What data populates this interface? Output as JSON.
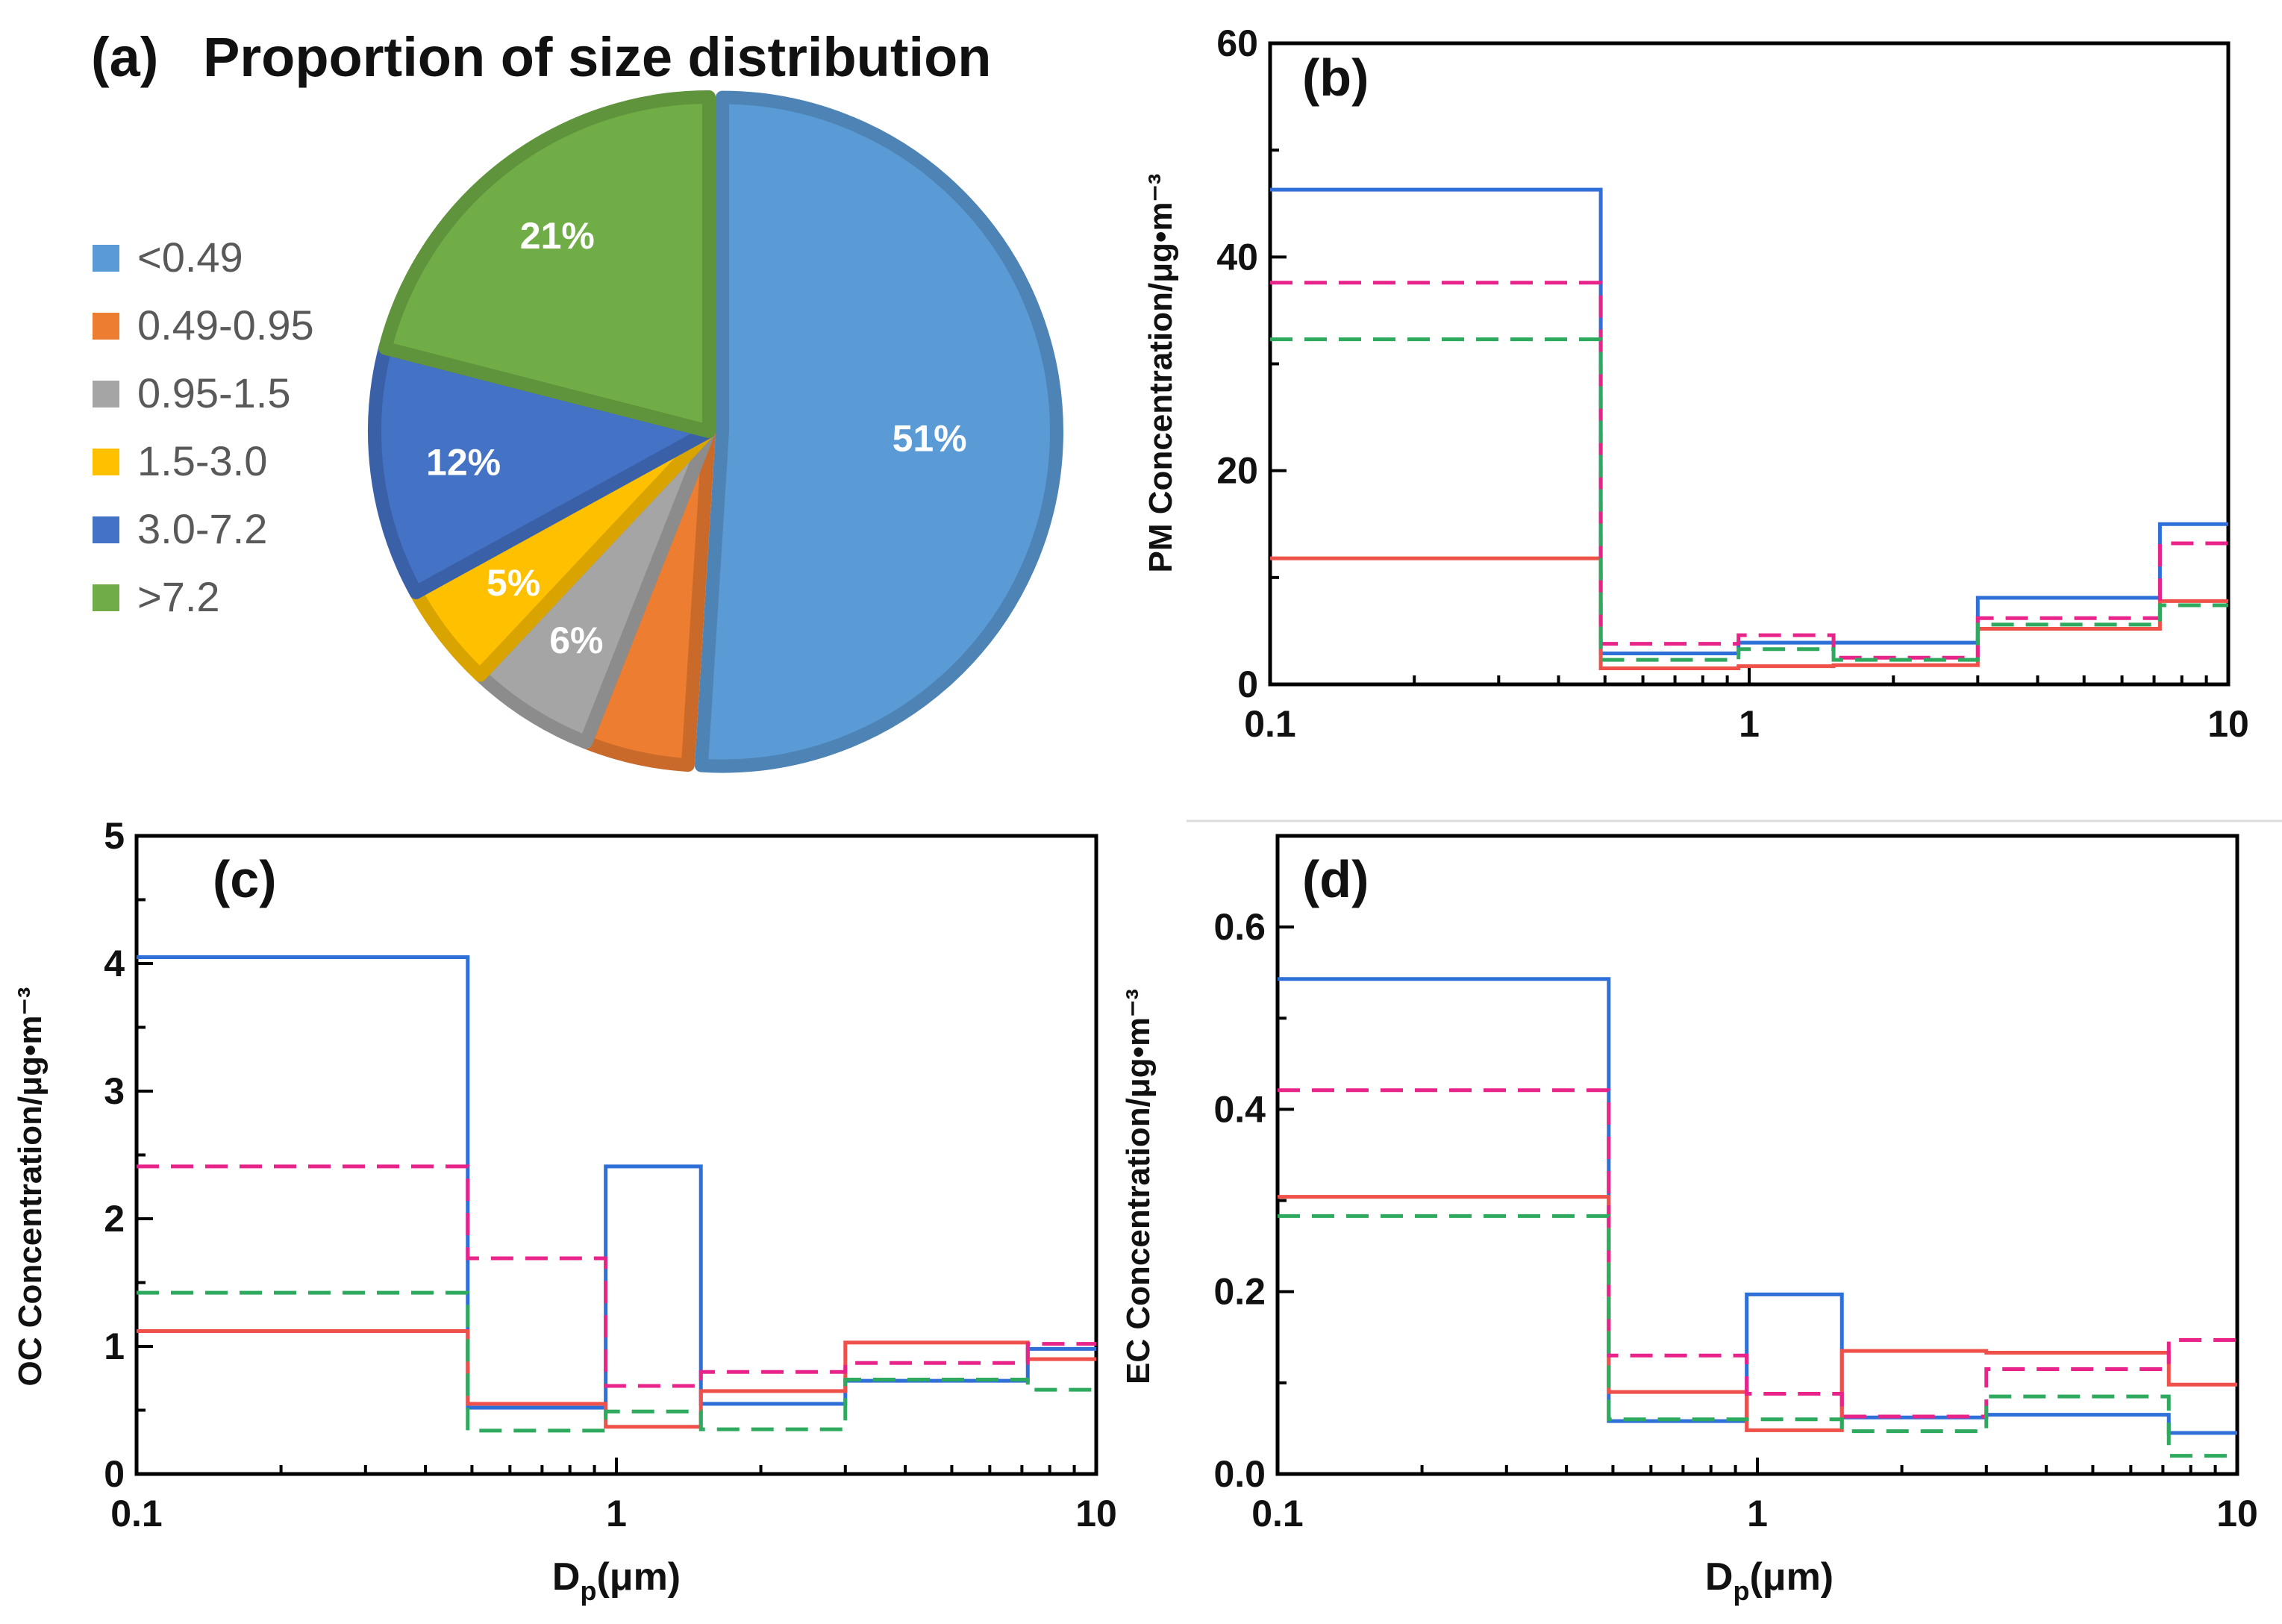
{
  "chart_data": [
    {
      "panel": "a",
      "type": "pie",
      "panel_label": "(a)",
      "title": "Proportion of size distribution",
      "categories": [
        "<0.49",
        "0.49-0.95",
        "0.95-1.5",
        "1.5-3.0",
        "3.0-7.2",
        ">7.2"
      ],
      "values": [
        51,
        5,
        6,
        5,
        12,
        21
      ],
      "data_labels": [
        "51%",
        "",
        "6%",
        "5%",
        "12%",
        "21%"
      ],
      "colors": [
        "#5B9BD5",
        "#ED7D31",
        "#A5A5A5",
        "#FFC000",
        "#4472C4",
        "#70AD47"
      ],
      "legend_position": "left"
    },
    {
      "panel": "b",
      "type": "line",
      "panel_label": "(b)",
      "xlabel": "",
      "ylabel": "PM Concentration/μg•m⁻³",
      "xscale": "log",
      "xlim": [
        0.1,
        10
      ],
      "ylim": [
        0,
        60
      ],
      "yticks": [
        "0",
        "20",
        "40",
        "60"
      ],
      "xticks": [
        "0.1",
        "1",
        "10"
      ],
      "bin_edges": [
        0.1,
        0.49,
        0.95,
        1.5,
        3.0,
        7.2,
        10
      ],
      "series": [
        {
          "name": "blue",
          "color": "#2F6FD8",
          "dash": "solid",
          "values": [
            46.3,
            2.9,
            3.9,
            3.9,
            8.1,
            15.0
          ]
        },
        {
          "name": "red",
          "color": "#F0504A",
          "dash": "solid",
          "values": [
            11.8,
            1.5,
            1.7,
            1.8,
            5.2,
            7.8
          ]
        },
        {
          "name": "magenta",
          "color": "#E8248A",
          "dash": "dashed",
          "values": [
            37.6,
            3.8,
            4.6,
            2.5,
            6.2,
            13.2
          ]
        },
        {
          "name": "green",
          "color": "#2EAA5E",
          "dash": "dashed",
          "values": [
            32.3,
            2.3,
            3.3,
            2.3,
            5.6,
            7.4
          ]
        }
      ]
    },
    {
      "panel": "c",
      "type": "line",
      "panel_label": "(c)",
      "xlabel": "D",
      "xlabel_sub": "p",
      "xlabel_suffix": "(μm)",
      "ylabel": "OC Concentration/μg•m⁻³",
      "xscale": "log",
      "xlim": [
        0.1,
        10
      ],
      "ylim": [
        0,
        5
      ],
      "yticks": [
        "0",
        "1",
        "2",
        "3",
        "4",
        "5"
      ],
      "xticks": [
        "0.1",
        "1",
        "10"
      ],
      "bin_edges": [
        0.1,
        0.49,
        0.95,
        1.5,
        3.0,
        7.2,
        10
      ],
      "series": [
        {
          "name": "blue",
          "color": "#2F6FD8",
          "dash": "solid",
          "values": [
            4.05,
            0.52,
            2.41,
            0.55,
            0.73,
            0.98
          ]
        },
        {
          "name": "red",
          "color": "#F0504A",
          "dash": "solid",
          "values": [
            1.12,
            0.55,
            0.37,
            0.65,
            1.03,
            0.9
          ]
        },
        {
          "name": "magenta",
          "color": "#E8248A",
          "dash": "dashed",
          "values": [
            2.41,
            1.69,
            0.69,
            0.8,
            0.87,
            1.02
          ]
        },
        {
          "name": "green",
          "color": "#2EAA5E",
          "dash": "dashed",
          "values": [
            1.42,
            0.34,
            0.49,
            0.35,
            0.74,
            0.66
          ]
        }
      ]
    },
    {
      "panel": "d",
      "type": "line",
      "panel_label": "(d)",
      "xlabel": "D",
      "xlabel_sub": "p",
      "xlabel_suffix": "(μm)",
      "ylabel": "EC Concentration/μg•m⁻³",
      "xscale": "log",
      "xlim": [
        0.1,
        10
      ],
      "ylim": [
        0,
        0.7
      ],
      "yticks": [
        "0.0",
        "0.2",
        "0.4",
        "0.6"
      ],
      "xticks": [
        "0.1",
        "1",
        "10"
      ],
      "bin_edges": [
        0.1,
        0.49,
        0.95,
        1.5,
        3.0,
        7.2,
        10
      ],
      "series": [
        {
          "name": "blue",
          "color": "#2F6FD8",
          "dash": "solid",
          "values": [
            0.543,
            0.058,
            0.197,
            0.062,
            0.065,
            0.045
          ]
        },
        {
          "name": "red",
          "color": "#F0504A",
          "dash": "solid",
          "values": [
            0.304,
            0.09,
            0.048,
            0.135,
            0.133,
            0.098
          ]
        },
        {
          "name": "magenta",
          "color": "#E8248A",
          "dash": "dashed",
          "values": [
            0.421,
            0.13,
            0.088,
            0.063,
            0.115,
            0.147
          ]
        },
        {
          "name": "green",
          "color": "#2EAA5E",
          "dash": "dashed",
          "values": [
            0.283,
            0.06,
            0.06,
            0.047,
            0.085,
            0.02
          ]
        }
      ]
    }
  ]
}
